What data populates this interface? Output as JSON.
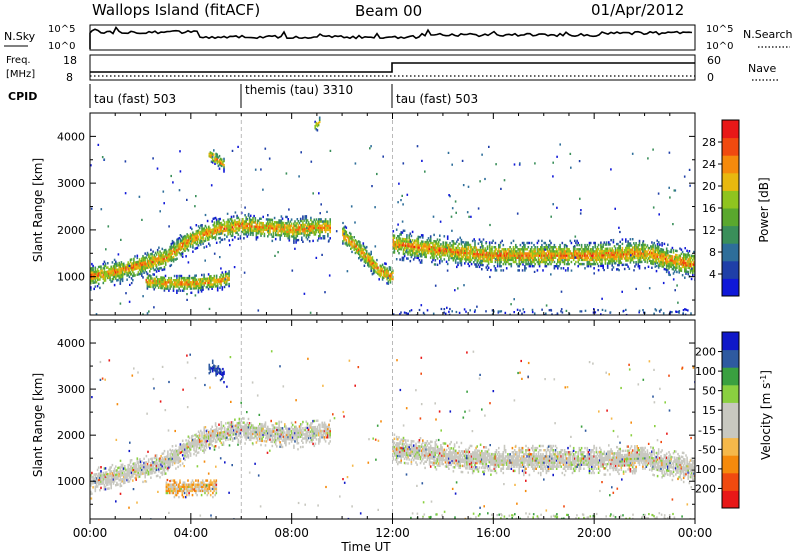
{
  "header": {
    "title_left": "Wallops Island (fitACF)",
    "title_center": "Beam 00",
    "title_right": "01/Apr/2012"
  },
  "noise_panel": {
    "left_label": "N.Sky",
    "right_label": "N.Search",
    "left_ticks": [
      "10^5",
      "10^0"
    ],
    "right_ticks": [
      "10^5",
      "10^0"
    ]
  },
  "freq_panel": {
    "left_label_1": "Freq.",
    "left_label_2": "[MHz]",
    "right_label": "Nave",
    "left_ticks": [
      "18",
      "8"
    ],
    "right_ticks": [
      "60",
      "0"
    ]
  },
  "cpid_panel": {
    "label": "CPID",
    "segments": [
      {
        "start": 0,
        "end": 6,
        "text": "tau (fast) 503"
      },
      {
        "start": 6,
        "end": 12,
        "text": "themis (tau) 3310"
      },
      {
        "start": 12,
        "end": 24,
        "text": "tau (fast) 503"
      }
    ]
  },
  "x_axis": {
    "label": "Time UT",
    "ticks": [
      0,
      4,
      8,
      12,
      16,
      20,
      24
    ],
    "tick_labels": [
      "00:00",
      "04:00",
      "08:00",
      "12:00",
      "16:00",
      "20:00",
      "00:00"
    ]
  },
  "colors": {
    "power": [
      "#1018d8",
      "#1f3fa8",
      "#2e6e9a",
      "#3a8f5a",
      "#5aa82e",
      "#8fc41f",
      "#e8b80f",
      "#f58a0c",
      "#f04a10",
      "#e81818"
    ],
    "velocity": [
      "#e81818",
      "#f04a10",
      "#f58a0c",
      "#f5b84a",
      "#c8c8c0",
      "#c8c8c0",
      "#8ad040",
      "#3aa040",
      "#2e5aa0",
      "#1018c8"
    ]
  },
  "chart_data": [
    {
      "type": "heatmap",
      "name": "power",
      "ylabel": "Slant Range [km]",
      "xlim": [
        0,
        24
      ],
      "ylim": [
        180,
        4500
      ],
      "yticks": [
        1000,
        2000,
        3000,
        4000
      ],
      "colorbar": {
        "label": "Power [dB]",
        "ticks": [
          4,
          8,
          12,
          16,
          20,
          24,
          28
        ],
        "range": [
          0,
          32
        ]
      },
      "features": [
        {
          "t": [
            0.0,
            1.0,
            2.0,
            3.0,
            4.0,
            5.0,
            6.0,
            7.0,
            8.0,
            9.0,
            9.5
          ],
          "r": [
            1000,
            1100,
            1250,
            1400,
            1800,
            2000,
            2100,
            2050,
            2000,
            2050,
            2050
          ],
          "width_km": 350
        },
        {
          "t": [
            10.0,
            10.8,
            11.5,
            12.0
          ],
          "r": [
            1900,
            1500,
            1100,
            1000
          ],
          "width_km": 300
        },
        {
          "t": [
            12.0,
            14.0,
            16.0,
            18.0,
            20.0,
            22.0,
            23.0,
            24.0
          ],
          "r": [
            1700,
            1550,
            1450,
            1450,
            1450,
            1500,
            1350,
            1250
          ],
          "width_km": 400
        },
        {
          "t": [
            2.2,
            3.0,
            4.0,
            5.0,
            5.5
          ],
          "r": [
            900,
            850,
            850,
            900,
            950
          ],
          "width_km": 250
        },
        {
          "t": [
            4.7,
            5.0,
            5.3
          ],
          "r": [
            3600,
            3500,
            3400
          ],
          "width_km": 200
        },
        {
          "t": [
            8.9,
            9.1
          ],
          "r": [
            4200,
            4300
          ],
          "width_km": 150
        }
      ]
    },
    {
      "type": "heatmap",
      "name": "velocity",
      "ylabel": "Slant Range [km]",
      "xlabel": "Time UT",
      "xlim": [
        0,
        24
      ],
      "ylim": [
        180,
        4500
      ],
      "yticks": [
        1000,
        2000,
        3000,
        4000
      ],
      "colorbar": {
        "label": "Velocity [m s^-1]",
        "ticks": [
          -200,
          -100,
          -50,
          -15,
          15,
          50,
          100,
          200
        ]
      },
      "features": [
        {
          "t": [
            0.0,
            1.0,
            2.0,
            3.0,
            4.0,
            5.0,
            6.0,
            7.0,
            8.0,
            9.0,
            9.5
          ],
          "r": [
            1000,
            1100,
            1250,
            1400,
            1800,
            2000,
            2100,
            2050,
            2000,
            2050,
            2050
          ],
          "width_km": 350
        },
        {
          "t": [
            12.0,
            14.0,
            16.0,
            18.0,
            20.0,
            22.0,
            23.0,
            24.0
          ],
          "r": [
            1700,
            1550,
            1450,
            1450,
            1450,
            1500,
            1350,
            1250
          ],
          "width_km": 400
        },
        {
          "t": [
            3.0,
            4.0,
            5.0
          ],
          "r": [
            850,
            850,
            850
          ],
          "width_km": 250
        },
        {
          "t": [
            4.7,
            5.0,
            5.3
          ],
          "r": [
            3500,
            3400,
            3300
          ],
          "width_km": 200
        }
      ]
    }
  ]
}
